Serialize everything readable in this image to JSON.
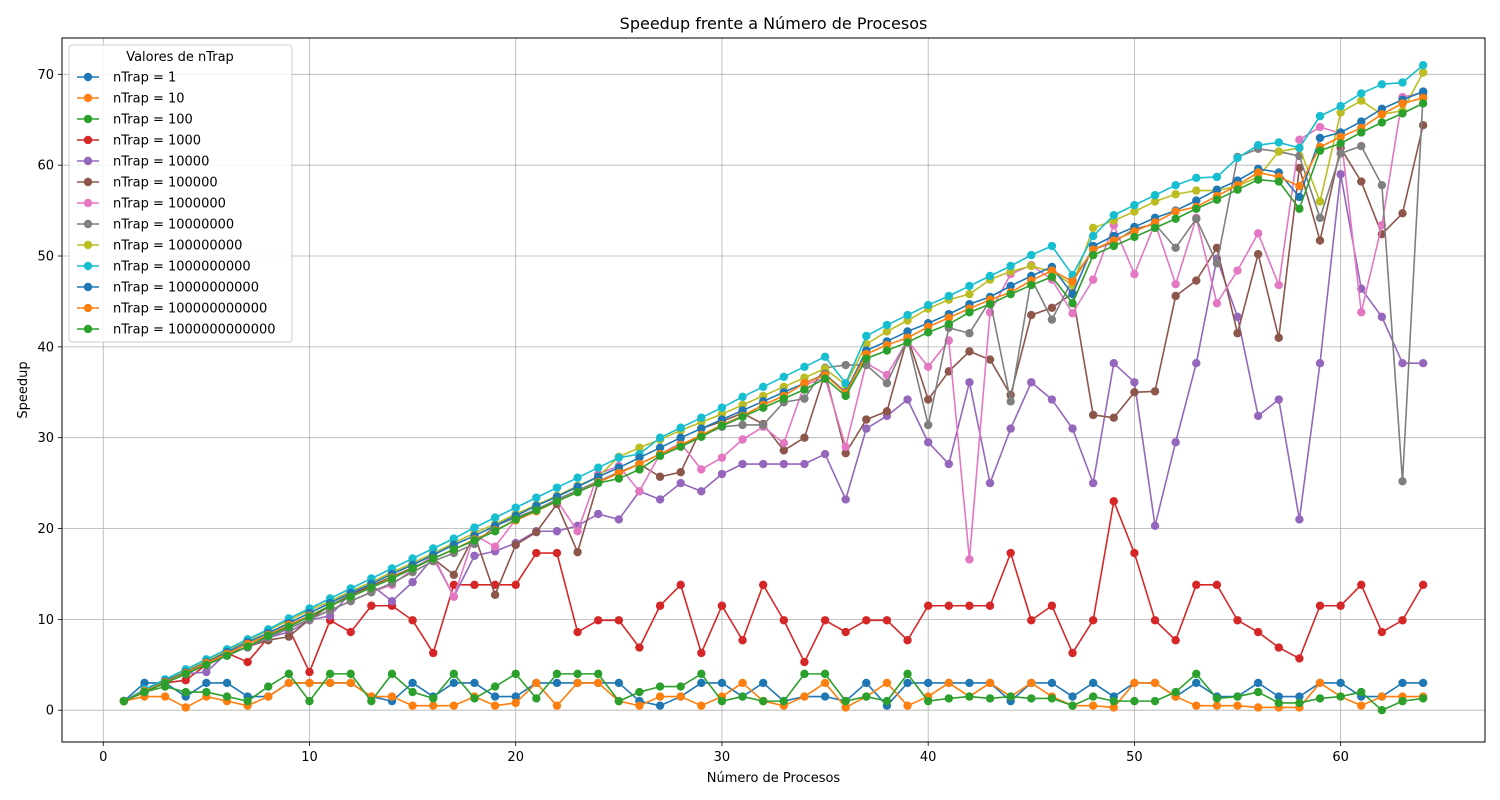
{
  "chart_data": {
    "type": "line",
    "title": "Speedup frente a Número de Procesos",
    "xlabel": "Número de Procesos",
    "ylabel": "Speedup",
    "xlim": [
      -2,
      67
    ],
    "ylim": [
      -3.5,
      74
    ],
    "xticks": [
      0,
      10,
      20,
      30,
      40,
      50,
      60
    ],
    "yticks": [
      0,
      10,
      20,
      30,
      40,
      50,
      60,
      70
    ],
    "grid": true,
    "legend": {
      "title": "Valores de nTrap",
      "placement": "top-left"
    },
    "x": [
      1,
      2,
      3,
      4,
      5,
      6,
      7,
      8,
      9,
      10,
      11,
      12,
      13,
      14,
      15,
      16,
      17,
      18,
      19,
      20,
      21,
      22,
      23,
      24,
      25,
      26,
      27,
      28,
      29,
      30,
      31,
      32,
      33,
      34,
      35,
      36,
      37,
      38,
      39,
      40,
      41,
      42,
      43,
      44,
      45,
      46,
      47,
      48,
      49,
      50,
      51,
      52,
      53,
      54,
      55,
      56,
      57,
      58,
      59,
      60,
      61,
      62,
      63,
      64
    ],
    "series": [
      {
        "name": "nTrap = 1",
        "color": "#1f77b4",
        "values": [
          1,
          3,
          3,
          1.5,
          3,
          3,
          1.5,
          1.5,
          3,
          3,
          3,
          3,
          1.5,
          1,
          3,
          1.5,
          3,
          3,
          1.5,
          1.5,
          3,
          3,
          3,
          3,
          3,
          1,
          0.5,
          1.5,
          3,
          3,
          1.5,
          3,
          1,
          1.5,
          1.5,
          1,
          3,
          0.5,
          3,
          3,
          3,
          3,
          3,
          1,
          3,
          3,
          1.5,
          3,
          1.5,
          3,
          3,
          1.5,
          3,
          1.5,
          1.5,
          3,
          1.5,
          1.5,
          3,
          3,
          1.5,
          1.5,
          3,
          3
        ]
      },
      {
        "name": "nTrap = 10",
        "color": "#ff7f0e",
        "values": [
          1,
          1.5,
          1.5,
          0.3,
          1.5,
          1,
          0.5,
          1.5,
          3,
          3,
          3,
          3,
          1.5,
          1.5,
          0.5,
          0.5,
          0.5,
          1.5,
          0.5,
          0.8,
          3,
          0.5,
          3,
          3,
          1,
          0.5,
          1.5,
          1.5,
          0.5,
          1.5,
          3,
          1,
          0.5,
          1.5,
          3,
          0.3,
          1.5,
          3,
          0.5,
          1.5,
          3,
          1.5,
          3,
          1.5,
          3,
          1.5,
          0.5,
          0.5,
          0.3,
          3,
          3,
          1.5,
          0.5,
          0.5,
          0.5,
          0.3,
          0.3,
          0.3,
          3,
          1.5,
          0.5,
          1.5,
          1.5,
          1.5
        ]
      },
      {
        "name": "nTrap = 100",
        "color": "#2ca02c",
        "values": [
          1,
          2,
          2.6,
          2,
          2,
          1.5,
          1,
          2.6,
          4,
          1,
          4,
          4,
          1,
          4,
          2,
          1.3,
          4,
          1.3,
          2.6,
          4,
          1.3,
          4,
          4,
          4,
          1,
          2,
          2.6,
          2.6,
          4,
          1,
          1.5,
          1,
          1,
          4,
          4,
          1,
          1.5,
          1,
          4,
          1,
          1.3,
          1.5,
          1.3,
          1.5,
          1.3,
          1.3,
          0.5,
          1.5,
          1,
          1,
          1,
          2,
          4,
          1.3,
          1.5,
          2,
          0.8,
          0.8,
          1.3,
          1.5,
          2,
          0,
          1,
          1.3
        ]
      },
      {
        "name": "nTrap = 1000",
        "color": "#d62728",
        "values": [
          1,
          2,
          3,
          3.3,
          5,
          6.3,
          5.3,
          8,
          9,
          4.2,
          9.9,
          8.6,
          11.5,
          11.5,
          9.9,
          6.3,
          13.8,
          13.8,
          13.8,
          13.8,
          17.3,
          17.3,
          8.6,
          9.9,
          9.9,
          6.9,
          11.5,
          13.8,
          6.3,
          11.5,
          7.7,
          13.8,
          9.9,
          5.3,
          9.9,
          8.6,
          9.9,
          9.9,
          7.7,
          11.5,
          11.5,
          11.5,
          11.5,
          17.3,
          9.9,
          11.5,
          6.3,
          9.9,
          23,
          17.3,
          9.9,
          7.7,
          13.8,
          13.8,
          9.9,
          8.6,
          6.9,
          5.7,
          11.5,
          11.5,
          13.8,
          8.6,
          9.9,
          13.8
        ]
      },
      {
        "name": "nTrap = 10000",
        "color": "#9467bd",
        "values": [
          1,
          2,
          3,
          4,
          4.2,
          6.3,
          6.9,
          8,
          8.6,
          9.9,
          10.4,
          12.9,
          13.8,
          12,
          14.1,
          16.8,
          12.5,
          17,
          17.5,
          18.4,
          19.7,
          19.7,
          20.3,
          21.6,
          21,
          24.1,
          23.2,
          25,
          24.1,
          26,
          27.1,
          27.1,
          27.1,
          27.1,
          28.2,
          23.2,
          31,
          32.4,
          34.2,
          29.5,
          27.1,
          36.1,
          25,
          31,
          36.1,
          34.2,
          31,
          25,
          38.2,
          36.1,
          20.3,
          29.5,
          38.2,
          49.7,
          43.3,
          32.4,
          34.2,
          21,
          38.2,
          59,
          46.4,
          43.3,
          38.2,
          38.2
        ]
      },
      {
        "name": "nTrap = 100000",
        "color": "#8c564b",
        "values": [
          1,
          2,
          3,
          4,
          5,
          6,
          7,
          7.7,
          8.1,
          10,
          11.5,
          12.7,
          13.7,
          14.7,
          15.7,
          16.7,
          14.9,
          19.3,
          12.7,
          18.2,
          19.6,
          22.7,
          17.4,
          25.1,
          26.1,
          27.1,
          25.7,
          26.2,
          31,
          31.8,
          32.7,
          31.5,
          28.6,
          30,
          37.1,
          28.3,
          32,
          32.9,
          41.1,
          34.2,
          37.3,
          39.5,
          38.6,
          34.7,
          43.5,
          44.3,
          45.9,
          32.5,
          32.2,
          35,
          35.1,
          45.6,
          47.3,
          50.9,
          41.5,
          50.2,
          41,
          59.7,
          51.7,
          61.9,
          58.2,
          52.4,
          54.7,
          64.4
        ]
      },
      {
        "name": "nTrap = 1000000",
        "color": "#e377c2",
        "values": [
          1,
          2,
          3,
          4,
          5,
          6,
          7,
          8,
          9,
          10,
          11,
          12,
          13,
          13.8,
          15.5,
          17,
          12.5,
          19.3,
          18,
          21,
          22,
          23.1,
          19.7,
          26,
          26.9,
          24.1,
          28.2,
          29.4,
          26.5,
          27.8,
          29.8,
          31.2,
          29.4,
          35.8,
          36.6,
          29,
          38.2,
          36.9,
          40.7,
          37.8,
          40.7,
          16.6,
          43.8,
          48,
          49,
          47.4,
          43.7,
          47.4,
          53.4,
          48,
          53.6,
          46.9,
          54.2,
          44.8,
          48.4,
          52.5,
          46.8,
          62.8,
          64.2,
          63.5,
          43.8,
          53.4,
          67.5,
          68
        ]
      },
      {
        "name": "nTrap = 10000000",
        "color": "#7f7f7f",
        "values": [
          1,
          2,
          3,
          4,
          5,
          6,
          7,
          8,
          9,
          10,
          11,
          12,
          13,
          14,
          15.2,
          16.4,
          17.3,
          18.3,
          20.3,
          21.2,
          22.1,
          23.2,
          24.2,
          25.2,
          26.2,
          27.1,
          28.2,
          29.2,
          30.2,
          31.2,
          31.4,
          31.4,
          33.9,
          34.3,
          37.7,
          38,
          38,
          36,
          40.9,
          31.4,
          42.1,
          41.5,
          45.1,
          34,
          47.5,
          43,
          47.4,
          50.7,
          51.5,
          53,
          53.5,
          50.9,
          54.1,
          49.2,
          60.9,
          61.8,
          61.5,
          61,
          54.2,
          61.3,
          62.1,
          57.8,
          25.2,
          67.8
        ]
      },
      {
        "name": "nTrap = 100000000",
        "color": "#bcbd22",
        "values": [
          1,
          2.2,
          3.3,
          4.4,
          5.5,
          6.6,
          7.7,
          8.8,
          9.9,
          11,
          12,
          13.1,
          14.1,
          15.2,
          16.2,
          17.3,
          18.4,
          19.5,
          20.5,
          21.6,
          22.6,
          23.6,
          24.7,
          25.7,
          27.9,
          28.9,
          29.8,
          30.8,
          31.7,
          32.6,
          33.6,
          34.6,
          35.6,
          36.6,
          37.6,
          35.8,
          40.3,
          41.7,
          42.9,
          44.2,
          45.2,
          45.8,
          47.4,
          48.3,
          48.9,
          48.3,
          46.8,
          53.1,
          53.9,
          54.9,
          56,
          56.8,
          57.2,
          57.2,
          57.7,
          58.7,
          61.5,
          61.9,
          56,
          65.8,
          67.1,
          65.6,
          66,
          70.2
        ]
      },
      {
        "name": "nTrap = 1000000000",
        "color": "#17becf",
        "values": [
          1,
          2.3,
          3.4,
          4.5,
          5.6,
          6.7,
          7.8,
          8.9,
          10.1,
          11.2,
          12.3,
          13.4,
          14.5,
          15.6,
          16.7,
          17.8,
          18.9,
          20.1,
          21.2,
          22.3,
          23.4,
          24.5,
          25.6,
          26.7,
          27.8,
          28.2,
          30,
          31.1,
          32.2,
          33.3,
          34.5,
          35.6,
          36.7,
          37.8,
          38.9,
          36,
          41.2,
          42.4,
          43.5,
          44.6,
          45.6,
          46.7,
          47.8,
          48.9,
          50.1,
          51.1,
          47.9,
          52.2,
          54.5,
          55.6,
          56.7,
          57.8,
          58.6,
          58.7,
          60.8,
          62.2,
          62.5,
          61.9,
          65.4,
          66.5,
          67.9,
          68.9,
          69.1,
          71
        ]
      },
      {
        "name": "nTrap = 10000000000",
        "color": "#1f77b4",
        "values": [
          1,
          2.1,
          3.2,
          4.2,
          5.3,
          6.4,
          7.5,
          8.5,
          9.6,
          10.7,
          11.8,
          12.9,
          13.9,
          15,
          16,
          17.1,
          18.2,
          19.2,
          20.3,
          21.4,
          22.5,
          23.5,
          24.6,
          25.7,
          26.7,
          27.8,
          28.9,
          30,
          31,
          32,
          33,
          34,
          35,
          36,
          37,
          35,
          39.6,
          40.6,
          41.7,
          42.6,
          43.6,
          44.7,
          45.5,
          46.7,
          47.8,
          48.8,
          45.8,
          51.1,
          52.2,
          53.2,
          54.2,
          55,
          56.1,
          57.3,
          58.3,
          59.6,
          59.2,
          56.5,
          63,
          63.6,
          64.8,
          66.2,
          67.2,
          68.1
        ]
      },
      {
        "name": "nTrap = 100000000000",
        "color": "#ff7f0e",
        "values": [
          1,
          2.1,
          3.1,
          4.1,
          5.2,
          6.2,
          7.3,
          8.3,
          9.4,
          10.4,
          11.5,
          12.5,
          13.5,
          14.6,
          15.6,
          16.7,
          17.7,
          18.8,
          19.8,
          20.9,
          21.9,
          23,
          24,
          25.1,
          26.1,
          27.1,
          28.2,
          29.2,
          30.3,
          31.4,
          32.4,
          33.6,
          34.6,
          36,
          36.9,
          34.9,
          39.2,
          40.2,
          41,
          42.2,
          43.2,
          44.2,
          45.2,
          46,
          47.3,
          48.4,
          47.2,
          50.7,
          51.7,
          52.7,
          53.7,
          54.9,
          55.4,
          56.6,
          57.8,
          59.2,
          58.7,
          57.7,
          62,
          63.1,
          64.1,
          65.6,
          66.8,
          67.4
        ]
      },
      {
        "name": "nTrap = 1000000000000",
        "color": "#2ca02c",
        "values": [
          1,
          2,
          3,
          4,
          5,
          6,
          7,
          8.2,
          9.2,
          10.3,
          11.5,
          12.5,
          13.5,
          14.5,
          15.6,
          16.7,
          17.7,
          18.7,
          19.7,
          21,
          22,
          23,
          24,
          25,
          25.5,
          26.5,
          28,
          29,
          30.1,
          31.3,
          32.3,
          33.3,
          34.3,
          35.3,
          36.5,
          34.6,
          38.7,
          39.6,
          40.5,
          41.6,
          42.5,
          43.8,
          44.7,
          45.8,
          46.8,
          47.7,
          44.8,
          50.1,
          51.1,
          52.1,
          53.1,
          54.1,
          55.2,
          56.2,
          57.3,
          58.4,
          58.2,
          55.2,
          61.6,
          62.4,
          63.6,
          64.7,
          65.7,
          66.8
        ]
      }
    ]
  }
}
